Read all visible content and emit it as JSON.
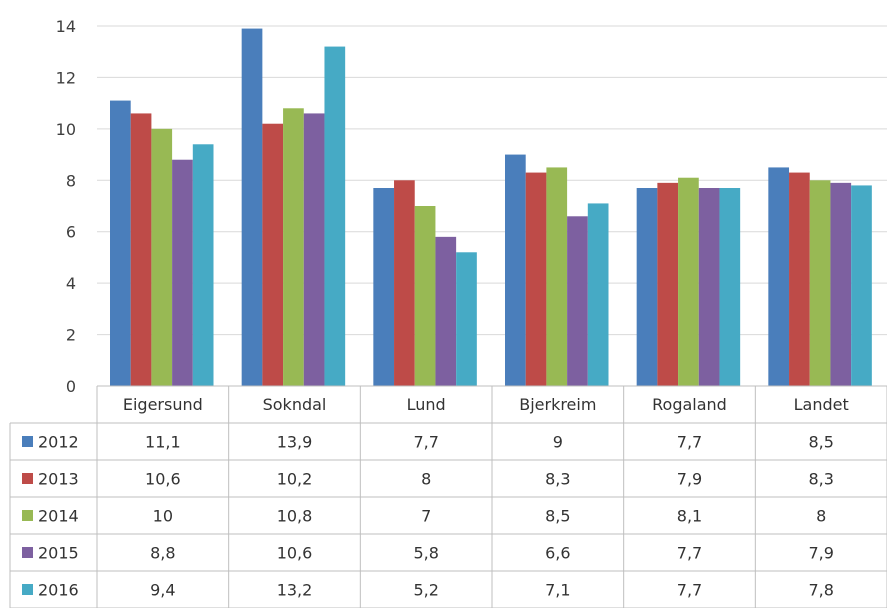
{
  "chart_data": {
    "type": "bar",
    "categories": [
      "Eigersund",
      "Sokndal",
      "Lund",
      "Bjerkreim",
      "Rogaland",
      "Landet"
    ],
    "series": [
      {
        "name": "2012",
        "color": "#4a7ebb",
        "values": [
          11.1,
          13.9,
          7.7,
          9,
          7.7,
          8.5
        ],
        "labels": [
          "11,1",
          "13,9",
          "7,7",
          "9",
          "7,7",
          "8,5"
        ]
      },
      {
        "name": "2013",
        "color": "#be4b48",
        "values": [
          10.6,
          10.2,
          8,
          8.3,
          7.9,
          8.3
        ],
        "labels": [
          "10,6",
          "10,2",
          "8",
          "8,3",
          "7,9",
          "8,3"
        ]
      },
      {
        "name": "2014",
        "color": "#98b954",
        "values": [
          10,
          10.8,
          7,
          8.5,
          8.1,
          8
        ],
        "labels": [
          "10",
          "10,8",
          "7",
          "8,5",
          "8,1",
          "8"
        ]
      },
      {
        "name": "2015",
        "color": "#7d60a0",
        "values": [
          8.8,
          10.6,
          5.8,
          6.6,
          7.7,
          7.9
        ],
        "labels": [
          "8,8",
          "10,6",
          "5,8",
          "6,6",
          "7,7",
          "7,9"
        ]
      },
      {
        "name": "2016",
        "color": "#46aac5",
        "values": [
          9.4,
          13.2,
          5.2,
          7.1,
          7.7,
          7.8
        ],
        "labels": [
          "9,4",
          "13,2",
          "5,2",
          "7,1",
          "7,7",
          "7,8"
        ]
      }
    ],
    "yticks": [
      0,
      2,
      4,
      6,
      8,
      10,
      12,
      14
    ],
    "ylim": [
      0,
      14
    ],
    "grid": true,
    "legend": "data-table"
  }
}
